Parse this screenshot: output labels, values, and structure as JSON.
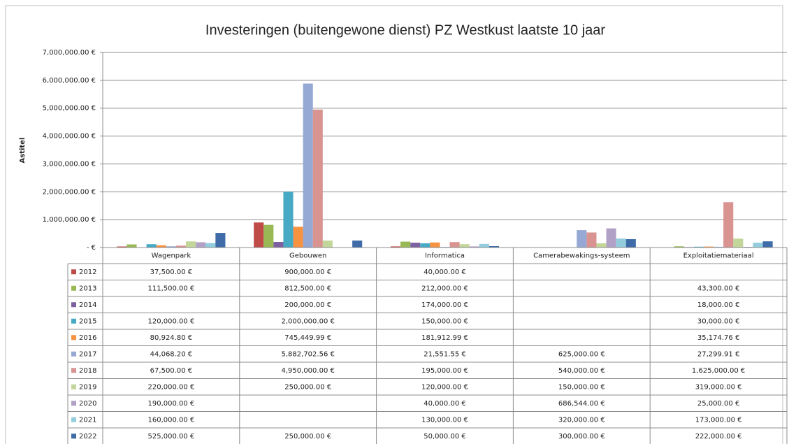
{
  "chart_data": {
    "type": "bar",
    "title": "Investeringen (buitengewone dienst) PZ Westkust laatste 10 jaar",
    "y_axis_label": "Astitel",
    "categories": [
      "Wagenpark",
      "Gebouwen",
      "Informatica",
      "Camerabewakings-systeem",
      "Exploitatiemateriaal"
    ],
    "ylim": [
      0,
      7000000
    ],
    "yticks": [
      {
        "value": 0,
        "label": "-  €"
      },
      {
        "value": 1000000,
        "label": "1,000,000.00 €"
      },
      {
        "value": 2000000,
        "label": "2,000,000.00 €"
      },
      {
        "value": 3000000,
        "label": "3,000,000.00 €"
      },
      {
        "value": 4000000,
        "label": "4,000,000.00 €"
      },
      {
        "value": 5000000,
        "label": "5,000,000.00 €"
      },
      {
        "value": 6000000,
        "label": "6,000,000.00 €"
      },
      {
        "value": 7000000,
        "label": "7,000,000.00 €"
      }
    ],
    "grid": true,
    "series": [
      {
        "name": "2012",
        "color": "#be4b48",
        "values": [
          37500,
          900000,
          40000,
          null,
          null
        ],
        "value_labels": [
          "37,500.00 €",
          "900,000.00 €",
          "40,000.00 €",
          null,
          null
        ]
      },
      {
        "name": "2013",
        "color": "#98b954",
        "values": [
          111500,
          812500,
          212000,
          null,
          43300
        ],
        "value_labels": [
          "111,500.00 €",
          "812,500.00 €",
          "212,000.00 €",
          null,
          "43,300.00 €"
        ]
      },
      {
        "name": "2014",
        "color": "#7d60a0",
        "values": [
          null,
          200000,
          174000,
          null,
          18000
        ],
        "value_labels": [
          null,
          "200,000.00 €",
          "174,000.00 €",
          null,
          "18,000.00 €"
        ]
      },
      {
        "name": "2015",
        "color": "#46aac5",
        "values": [
          120000,
          2000000,
          150000,
          null,
          30000
        ],
        "value_labels": [
          "120,000.00 €",
          "2,000,000.00 €",
          "150,000.00 €",
          null,
          "30,000.00 €"
        ]
      },
      {
        "name": "2016",
        "color": "#f69240",
        "values": [
          80924.8,
          745449.99,
          181912.99,
          null,
          35174.76
        ],
        "value_labels": [
          "80,924.80 €",
          "745,449.99 €",
          "181,912.99 €",
          null,
          "35,174.76 €"
        ]
      },
      {
        "name": "2017",
        "color": "#95a9d4",
        "values": [
          44068.2,
          5882702.56,
          21551.55,
          625000,
          27299.91
        ],
        "value_labels": [
          "44,068.20 €",
          "5,882,702.56 €",
          "21,551.55 €",
          "625,000.00 €",
          "27,299.91 €"
        ]
      },
      {
        "name": "2018",
        "color": "#d99491",
        "values": [
          67500,
          4950000,
          195000,
          540000,
          1625000
        ],
        "value_labels": [
          "67,500.00 €",
          "4,950,000.00 €",
          "195,000.00 €",
          "540,000.00 €",
          "1,625,000.00 €"
        ]
      },
      {
        "name": "2019",
        "color": "#c2d69a",
        "values": [
          220000,
          250000,
          120000,
          150000,
          319000
        ],
        "value_labels": [
          "220,000.00 €",
          "250,000.00 €",
          "120,000.00 €",
          "150,000.00 €",
          "319,000.00 €"
        ]
      },
      {
        "name": "2020",
        "color": "#b2a1c7",
        "values": [
          190000,
          null,
          40000,
          686544,
          25000
        ],
        "value_labels": [
          "190,000.00 €",
          null,
          "40,000.00 €",
          "686,544.00 €",
          "25,000.00 €"
        ]
      },
      {
        "name": "2021",
        "color": "#93cddd",
        "values": [
          160000,
          null,
          130000,
          320000,
          173000
        ],
        "value_labels": [
          "160,000.00 €",
          null,
          "130,000.00 €",
          "320,000.00 €",
          "173,000.00 €"
        ]
      },
      {
        "name": "2022",
        "color": "#3f6ca8",
        "values": [
          525000,
          250000,
          50000,
          300000,
          222000
        ],
        "value_labels": [
          "525,000.00 €",
          "250,000.00 €",
          "50,000.00 €",
          "300,000.00 €",
          "222,000.00 €"
        ]
      }
    ]
  }
}
